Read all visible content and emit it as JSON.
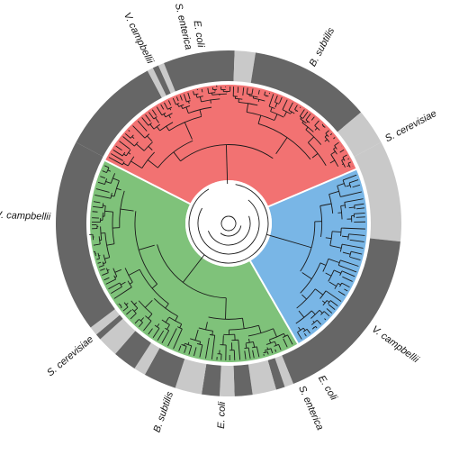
{
  "colors": {
    "ring_dark": "#666666",
    "ring_light": "#c9c9c9",
    "clade_red": "#f27272",
    "clade_green": "#7fc27a",
    "clade_blue": "#79b6e6",
    "branch": "#1a1a1a",
    "divider": "#ffffff"
  },
  "clades": [
    {
      "name": "red",
      "color_key": "clade_red",
      "start_deg": 297,
      "end_deg": 67
    },
    {
      "name": "blue",
      "color_key": "clade_blue",
      "start_deg": 67,
      "end_deg": 150
    },
    {
      "name": "green",
      "color_key": "clade_green",
      "start_deg": 150,
      "end_deg": 297
    }
  ],
  "ring_segments": [
    {
      "start_deg": 298,
      "end_deg": 332,
      "shade": "dark"
    },
    {
      "start_deg": 332,
      "end_deg": 334,
      "shade": "light"
    },
    {
      "start_deg": 334,
      "end_deg": 336,
      "shade": "dark"
    },
    {
      "start_deg": 336,
      "end_deg": 338,
      "shade": "light"
    },
    {
      "start_deg": 338,
      "end_deg": 2,
      "shade": "dark"
    },
    {
      "start_deg": 2,
      "end_deg": 9,
      "shade": "light"
    },
    {
      "start_deg": 9,
      "end_deg": 50,
      "shade": "dark"
    },
    {
      "start_deg": 50,
      "end_deg": 62,
      "shade": "light"
    },
    {
      "start_deg": 62,
      "end_deg": 96,
      "shade": "light"
    },
    {
      "start_deg": 96,
      "end_deg": 158,
      "shade": "dark"
    },
    {
      "start_deg": 158,
      "end_deg": 161,
      "shade": "light"
    },
    {
      "start_deg": 161,
      "end_deg": 164,
      "shade": "dark"
    },
    {
      "start_deg": 164,
      "end_deg": 172,
      "shade": "light"
    },
    {
      "start_deg": 172,
      "end_deg": 178,
      "shade": "dark"
    },
    {
      "start_deg": 178,
      "end_deg": 183,
      "shade": "light"
    },
    {
      "start_deg": 183,
      "end_deg": 189,
      "shade": "dark"
    },
    {
      "start_deg": 189,
      "end_deg": 198,
      "shade": "light"
    },
    {
      "start_deg": 198,
      "end_deg": 209,
      "shade": "dark"
    },
    {
      "start_deg": 209,
      "end_deg": 213,
      "shade": "light"
    },
    {
      "start_deg": 213,
      "end_deg": 221,
      "shade": "dark"
    },
    {
      "start_deg": 221,
      "end_deg": 228,
      "shade": "light"
    },
    {
      "start_deg": 228,
      "end_deg": 230,
      "shade": "dark"
    },
    {
      "start_deg": 230,
      "end_deg": 233,
      "shade": "light"
    },
    {
      "start_deg": 233,
      "end_deg": 298,
      "shade": "dark"
    }
  ],
  "labels": [
    {
      "text": "S. enterica",
      "angle_deg": 347
    },
    {
      "text": "E. coli",
      "angle_deg": 351
    },
    {
      "text": "V. campbellii",
      "angle_deg": 334
    },
    {
      "text": "B. subtilis",
      "angle_deg": 28
    },
    {
      "text": "S. cerevisiae",
      "angle_deg": 62
    },
    {
      "text": "V. campbellii",
      "angle_deg": 126
    },
    {
      "text": "E. coli",
      "angle_deg": 149
    },
    {
      "text": "S. enterica",
      "angle_deg": 156
    },
    {
      "text": "E. coli",
      "angle_deg": 182
    },
    {
      "text": "B. subtilis",
      "angle_deg": 199
    },
    {
      "text": "S. cerevisiae",
      "angle_deg": 230
    },
    {
      "text": "V. campbellii",
      "angle_deg": 272
    }
  ]
}
